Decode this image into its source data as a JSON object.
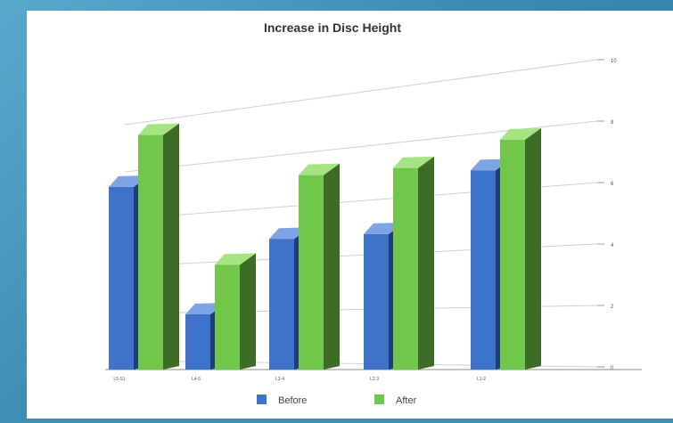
{
  "chart_data": {
    "type": "bar",
    "title": "Increase in Disc Height",
    "categories": [
      "L5-S1",
      "L4-5",
      "L3-4",
      "L2-3",
      "L1-2"
    ],
    "series": [
      {
        "name": "Before",
        "values": [
          7.4,
          2.0,
          5.2,
          5.4,
          8.1
        ]
      },
      {
        "name": "After",
        "values": [
          9.6,
          4.1,
          7.9,
          8.2,
          9.4
        ]
      }
    ],
    "yticks": [
      "0",
      "2",
      "4",
      "6",
      "8",
      "10"
    ],
    "ylim": [
      0,
      10
    ],
    "grid": true,
    "legend_position": "bottom",
    "colors": {
      "Before": "#3f73c9",
      "After": "#71c74a",
      "Before_side": "#1f3e79",
      "After_side": "#3d6c26",
      "After_top": "#a6e483",
      "Before_top": "#7fa4e6"
    }
  }
}
